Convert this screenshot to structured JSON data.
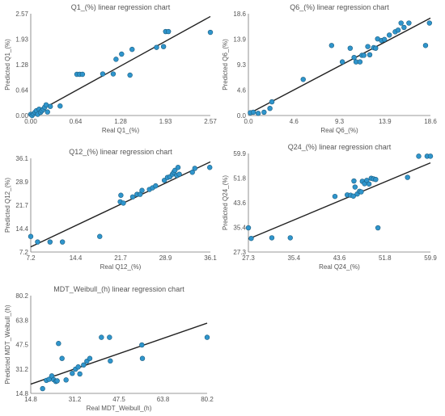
{
  "colors": {
    "point_fill": "#2f95cc",
    "point_stroke": "#1d5f82",
    "line": "#222222",
    "axis": "#777777",
    "text": "#555555"
  },
  "chart_data": [
    {
      "type": "scatter",
      "title": "Q1_(%) linear regression chart",
      "xlabel": "Real Q1_(%)",
      "ylabel": "Predicted Q1_(%)",
      "xlim": [
        0,
        2.57
      ],
      "ylim": [
        0,
        2.57
      ],
      "xticks": [
        "0.00",
        "0.64",
        "1.28",
        "1.93",
        "2.57"
      ],
      "yticks": [
        "0.00",
        "0.64",
        "1.28",
        "1.93",
        "2.57"
      ],
      "regression": {
        "from": [
          0.0,
          0.0
        ],
        "to": [
          2.57,
          2.5
        ]
      },
      "points": [
        {
          "x": 0.0,
          "y": 0.03
        },
        {
          "x": 0.02,
          "y": 0.0
        },
        {
          "x": 0.04,
          "y": 0.04
        },
        {
          "x": 0.06,
          "y": 0.08
        },
        {
          "x": 0.08,
          "y": 0.12
        },
        {
          "x": 0.1,
          "y": 0.03
        },
        {
          "x": 0.12,
          "y": 0.16
        },
        {
          "x": 0.14,
          "y": 0.08
        },
        {
          "x": 0.16,
          "y": 0.12
        },
        {
          "x": 0.18,
          "y": 0.16
        },
        {
          "x": 0.2,
          "y": 0.21
        },
        {
          "x": 0.24,
          "y": 0.09
        },
        {
          "x": 0.28,
          "y": 0.23
        },
        {
          "x": 0.22,
          "y": 0.27
        },
        {
          "x": 0.42,
          "y": 0.24
        },
        {
          "x": 0.66,
          "y": 1.04
        },
        {
          "x": 0.7,
          "y": 1.04
        },
        {
          "x": 0.74,
          "y": 1.04
        },
        {
          "x": 1.03,
          "y": 1.05
        },
        {
          "x": 1.18,
          "y": 1.05
        },
        {
          "x": 1.22,
          "y": 1.42
        },
        {
          "x": 1.3,
          "y": 1.55
        },
        {
          "x": 1.42,
          "y": 1.02
        },
        {
          "x": 1.45,
          "y": 1.67
        },
        {
          "x": 1.8,
          "y": 1.72
        },
        {
          "x": 1.9,
          "y": 1.74
        },
        {
          "x": 1.93,
          "y": 2.12
        },
        {
          "x": 1.97,
          "y": 2.12
        },
        {
          "x": 2.57,
          "y": 2.1
        }
      ]
    },
    {
      "type": "scatter",
      "title": "Q6_(%) linear regression chart",
      "xlabel": "Real Q6_(%)",
      "ylabel": "Predicted Q6_(%)",
      "xlim": [
        0,
        18.6
      ],
      "ylim": [
        0,
        18.6
      ],
      "xticks": [
        "0.0",
        "4.6",
        "9.3",
        "13.9",
        "18.6"
      ],
      "yticks": [
        "0.0",
        "4.6",
        "9.3",
        "13.9",
        "18.6"
      ],
      "regression": {
        "from": [
          0.0,
          0.3
        ],
        "to": [
          18.6,
          17.8
        ]
      },
      "points": [
        {
          "x": 0.2,
          "y": 0.5
        },
        {
          "x": 0.5,
          "y": 0.6
        },
        {
          "x": 1.0,
          "y": 0.4
        },
        {
          "x": 1.6,
          "y": 0.6
        },
        {
          "x": 2.2,
          "y": 1.3
        },
        {
          "x": 2.4,
          "y": 2.5
        },
        {
          "x": 5.6,
          "y": 6.6
        },
        {
          "x": 8.5,
          "y": 12.8
        },
        {
          "x": 9.6,
          "y": 9.8
        },
        {
          "x": 10.4,
          "y": 12.3
        },
        {
          "x": 10.8,
          "y": 10.6
        },
        {
          "x": 11.0,
          "y": 9.8
        },
        {
          "x": 11.4,
          "y": 9.8
        },
        {
          "x": 11.6,
          "y": 11.0
        },
        {
          "x": 11.8,
          "y": 11.0
        },
        {
          "x": 12.2,
          "y": 12.6
        },
        {
          "x": 12.4,
          "y": 11.1
        },
        {
          "x": 12.8,
          "y": 12.4
        },
        {
          "x": 13.0,
          "y": 12.3
        },
        {
          "x": 13.2,
          "y": 14.0
        },
        {
          "x": 13.6,
          "y": 13.7
        },
        {
          "x": 13.9,
          "y": 13.9
        },
        {
          "x": 14.4,
          "y": 14.7
        },
        {
          "x": 15.0,
          "y": 15.3
        },
        {
          "x": 15.3,
          "y": 15.6
        },
        {
          "x": 15.6,
          "y": 16.9
        },
        {
          "x": 15.9,
          "y": 16.1
        },
        {
          "x": 16.4,
          "y": 16.9
        },
        {
          "x": 18.1,
          "y": 12.8
        },
        {
          "x": 18.5,
          "y": 16.9
        }
      ]
    },
    {
      "type": "scatter",
      "title": "Q12_(%) linear regression chart",
      "xlabel": "Real Q12_(%)",
      "ylabel": "Predicted Q12_(%)",
      "xlim": [
        7.2,
        36.1
      ],
      "ylim": [
        7.2,
        36.1
      ],
      "xticks": [
        "7.2",
        "14.4",
        "21.7",
        "28.9",
        "36.1"
      ],
      "yticks": [
        "7.2",
        "14.4",
        "21.7",
        "28.9",
        "36.1"
      ],
      "regression": {
        "from": [
          7.2,
          8.8
        ],
        "to": [
          36.1,
          35.0
        ]
      },
      "points": [
        {
          "x": 7.2,
          "y": 12.0
        },
        {
          "x": 8.3,
          "y": 10.3
        },
        {
          "x": 10.3,
          "y": 10.3
        },
        {
          "x": 12.3,
          "y": 10.3
        },
        {
          "x": 18.3,
          "y": 12.0
        },
        {
          "x": 21.6,
          "y": 22.7
        },
        {
          "x": 21.7,
          "y": 24.7
        },
        {
          "x": 22.1,
          "y": 22.3
        },
        {
          "x": 23.6,
          "y": 24.2
        },
        {
          "x": 24.3,
          "y": 25.0
        },
        {
          "x": 24.8,
          "y": 25.0
        },
        {
          "x": 25.1,
          "y": 26.2
        },
        {
          "x": 26.3,
          "y": 26.5
        },
        {
          "x": 26.8,
          "y": 27.0
        },
        {
          "x": 27.3,
          "y": 27.6
        },
        {
          "x": 28.7,
          "y": 29.3
        },
        {
          "x": 29.2,
          "y": 30.2
        },
        {
          "x": 29.6,
          "y": 30.4
        },
        {
          "x": 30.0,
          "y": 31.2
        },
        {
          "x": 30.2,
          "y": 31.8
        },
        {
          "x": 30.4,
          "y": 32.4
        },
        {
          "x": 30.7,
          "y": 30.8
        },
        {
          "x": 30.9,
          "y": 33.3
        },
        {
          "x": 31.1,
          "y": 31.2
        },
        {
          "x": 33.2,
          "y": 31.8
        },
        {
          "x": 33.6,
          "y": 33.0
        },
        {
          "x": 36.0,
          "y": 33.3
        }
      ]
    },
    {
      "type": "scatter",
      "title": "Q24_(%) linear regression chart",
      "xlabel": "Real Q24_(%)",
      "ylabel": "Predicted Q24_(%)",
      "xlim": [
        27.3,
        59.9
      ],
      "ylim": [
        27.3,
        59.9
      ],
      "xticks": [
        "27.3",
        "35.4",
        "43.6",
        "51.8",
        "59.9"
      ],
      "yticks": [
        "27.3",
        "35.4",
        "43.6",
        "51.8",
        "59.9"
      ],
      "regression": {
        "from": [
          27.3,
          31.6
        ],
        "to": [
          59.9,
          56.8
        ]
      },
      "points": [
        {
          "x": 27.3,
          "y": 35.3
        },
        {
          "x": 27.8,
          "y": 31.8
        },
        {
          "x": 31.5,
          "y": 32.0
        },
        {
          "x": 34.8,
          "y": 32.0
        },
        {
          "x": 42.8,
          "y": 45.7
        },
        {
          "x": 45.0,
          "y": 46.2
        },
        {
          "x": 45.6,
          "y": 46.1
        },
        {
          "x": 46.1,
          "y": 45.8
        },
        {
          "x": 46.2,
          "y": 50.8
        },
        {
          "x": 46.4,
          "y": 48.8
        },
        {
          "x": 46.8,
          "y": 46.5
        },
        {
          "x": 47.2,
          "y": 47.4
        },
        {
          "x": 47.5,
          "y": 47.2
        },
        {
          "x": 47.7,
          "y": 50.7
        },
        {
          "x": 48.1,
          "y": 49.9
        },
        {
          "x": 48.5,
          "y": 51.0
        },
        {
          "x": 48.9,
          "y": 49.8
        },
        {
          "x": 49.3,
          "y": 51.7
        },
        {
          "x": 49.7,
          "y": 51.5
        },
        {
          "x": 50.1,
          "y": 51.3
        },
        {
          "x": 50.5,
          "y": 35.3
        },
        {
          "x": 55.8,
          "y": 52.0
        },
        {
          "x": 57.8,
          "y": 59.0
        },
        {
          "x": 59.3,
          "y": 59.0
        },
        {
          "x": 59.9,
          "y": 59.0
        }
      ]
    },
    {
      "type": "scatter",
      "title": "MDT_Weibull_(h) linear regression chart",
      "xlabel": "Real MDT_Weibull_(h)",
      "ylabel": "Predicted MDT_Weibull_(h)",
      "xlim": [
        14.8,
        80.2
      ],
      "ylim": [
        14.8,
        80.2
      ],
      "xticks": [
        "14.8",
        "31.2",
        "47.5",
        "63.8",
        "80.2"
      ],
      "yticks": [
        "14.8",
        "31.2",
        "47.5",
        "63.8",
        "80.2"
      ],
      "regression": {
        "from": [
          14.8,
          21.0
        ],
        "to": [
          80.2,
          61.8
        ]
      },
      "points": [
        {
          "x": 19.2,
          "y": 18.0
        },
        {
          "x": 20.6,
          "y": 23.5
        },
        {
          "x": 21.6,
          "y": 24.2
        },
        {
          "x": 22.6,
          "y": 26.5
        },
        {
          "x": 23.3,
          "y": 24.0
        },
        {
          "x": 24.1,
          "y": 22.8
        },
        {
          "x": 24.6,
          "y": 23.2
        },
        {
          "x": 25.1,
          "y": 48.2
        },
        {
          "x": 26.4,
          "y": 38.2
        },
        {
          "x": 27.9,
          "y": 23.8
        },
        {
          "x": 30.2,
          "y": 28.2
        },
        {
          "x": 31.4,
          "y": 31.0
        },
        {
          "x": 32.4,
          "y": 32.5
        },
        {
          "x": 33.0,
          "y": 27.8
        },
        {
          "x": 34.4,
          "y": 33.8
        },
        {
          "x": 35.6,
          "y": 36.3
        },
        {
          "x": 36.7,
          "y": 38.2
        },
        {
          "x": 41.0,
          "y": 52.3
        },
        {
          "x": 44.0,
          "y": 52.3
        },
        {
          "x": 44.3,
          "y": 36.5
        },
        {
          "x": 56.0,
          "y": 47.2
        },
        {
          "x": 56.2,
          "y": 38.2
        },
        {
          "x": 80.2,
          "y": 52.3
        }
      ]
    }
  ]
}
